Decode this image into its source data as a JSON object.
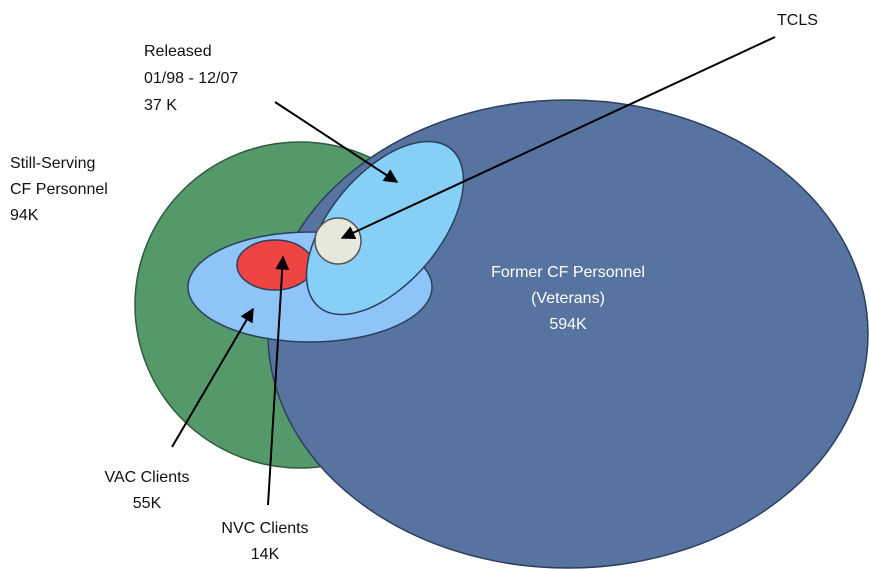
{
  "nodes": [
    {
      "label": [
        "Former CF Personnel",
        "(Veterans)",
        "594K"
      ]
    },
    {
      "label": [
        "Still-Serving",
        "CF Personnel",
        "94K"
      ]
    },
    {
      "label": [
        "Released",
        "01/98 - 12/07",
        "37 K"
      ]
    },
    {
      "label": [
        "VAC Clients",
        "55K"
      ]
    },
    {
      "label": [
        "NVC Clients",
        "14K"
      ]
    },
    {
      "label": [
        "TCLS"
      ]
    }
  ]
}
